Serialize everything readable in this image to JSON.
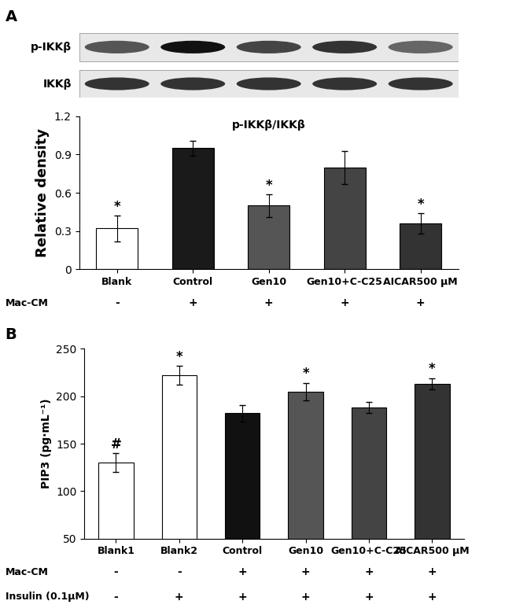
{
  "chart_data": [
    {
      "type": "bar",
      "panel": "A",
      "title": "p-IKKβ/IKKβ",
      "y_label": "Relative density",
      "blot_rows": [
        "p-IKKβ",
        "IKKβ"
      ],
      "categories": [
        "Blank",
        "Control",
        "Gen10",
        "Gen10+C-C25",
        "AICAR500 μM"
      ],
      "values": [
        0.32,
        0.95,
        0.5,
        0.8,
        0.36
      ],
      "errors": [
        0.1,
        0.06,
        0.09,
        0.13,
        0.08
      ],
      "significance": [
        "*",
        null,
        "*",
        null,
        "*"
      ],
      "colors": [
        "#ffffff",
        "#1a1a1a",
        "#555555",
        "#444444",
        "#333333"
      ],
      "treatments": [
        {
          "name": "Mac-CM",
          "values": [
            "-",
            "+",
            "+",
            "+",
            "+"
          ]
        }
      ],
      "ylim": [
        0,
        1.2
      ],
      "yticks": [
        0,
        0.3,
        0.6,
        0.9,
        1.2
      ]
    },
    {
      "type": "bar",
      "panel": "B",
      "y_label": "PIP3 (pg·mL⁻¹)",
      "categories": [
        "Blank1",
        "Blank2",
        "Control",
        "Gen10",
        "Gen10+C-C25",
        "AICAR500 μM"
      ],
      "values": [
        130,
        222,
        182,
        205,
        188,
        213
      ],
      "errors": [
        10,
        10,
        9,
        9,
        6,
        6
      ],
      "significance": [
        "#",
        "*",
        null,
        "*",
        null,
        "*"
      ],
      "colors": [
        "#ffffff",
        "#ffffff",
        "#111111",
        "#555555",
        "#444444",
        "#333333"
      ],
      "treatments": [
        {
          "name": "Mac-CM",
          "values": [
            "-",
            "-",
            "+",
            "+",
            "+",
            "+"
          ]
        },
        {
          "name": "Insulin (0.1μM)",
          "values": [
            "-",
            "+",
            "+",
            "+",
            "+",
            "+"
          ]
        }
      ],
      "ylim": [
        50,
        250
      ],
      "yticks": [
        50,
        100,
        150,
        200,
        250
      ]
    }
  ]
}
